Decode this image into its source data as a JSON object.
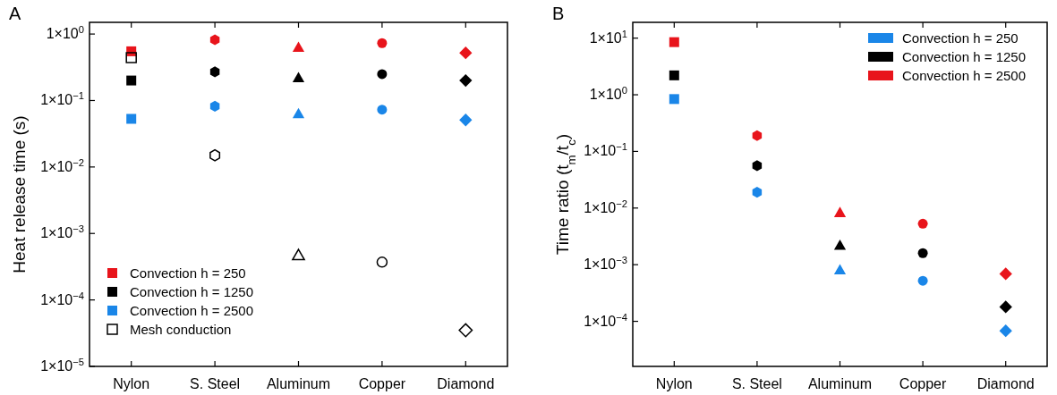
{
  "chart_data": [
    {
      "type": "scatter",
      "title": "A",
      "ylabel": "Heat release time (s)",
      "categories": [
        "Nylon",
        "S. Steel",
        "Aluminum",
        "Copper",
        "Diamond"
      ],
      "log": "y",
      "ylim": [
        1e-05,
        1.5
      ],
      "yticks": [
        {
          "value": 1e-05,
          "label": "1×10$^{−5}$"
        },
        {
          "value": 0.0001,
          "label": "1×10$^{−4}$"
        },
        {
          "value": 0.001,
          "label": "1×10$^{−3}$"
        },
        {
          "value": 0.01,
          "label": "1×10$^{−2}$"
        },
        {
          "value": 0.1,
          "label": "1×10$^{−1}$"
        },
        {
          "value": 1,
          "label": "1×10$^{0}$"
        }
      ],
      "legend": "bottom left",
      "grid": false,
      "series": [
        {
          "name": "Convection h = 250",
          "color": "#e8141b",
          "values": [
            0.55,
            0.82,
            0.63,
            0.73,
            0.52
          ]
        },
        {
          "name": "Convection h = 1250",
          "color": "#000000",
          "values": [
            0.2,
            0.27,
            0.22,
            0.25,
            0.2
          ]
        },
        {
          "name": "Convection h = 2500",
          "color": "#1a86e8",
          "values": [
            0.053,
            0.082,
            0.063,
            0.073,
            0.051
          ]
        },
        {
          "name": "Mesh conduction",
          "color": "#000000",
          "values": [
            0.44,
            0.015,
            0.00047,
            0.00037,
            3.5e-05
          ]
        }
      ]
    },
    {
      "type": "scatter",
      "title": "B",
      "ylabel": "Time ratio (t$_{m}$/t$_{c}$)",
      "categories": [
        "Nylon",
        "S. Steel",
        "Aluminum",
        "Copper",
        "Diamond"
      ],
      "log": "y",
      "ylim": [
        1.6e-05,
        19
      ],
      "yticks": [
        {
          "value": 0.0001,
          "label": "1×10$^{−4}$"
        },
        {
          "value": 0.001,
          "label": "1×10$^{−3}$"
        },
        {
          "value": 0.01,
          "label": "1×10$^{−2}$"
        },
        {
          "value": 0.1,
          "label": "1×10$^{−1}$"
        },
        {
          "value": 1,
          "label": "1×10$^{0}$"
        },
        {
          "value": 10,
          "label": "1×10$^{1}$"
        }
      ],
      "legend": "top right",
      "grid": false,
      "series": [
        {
          "name": "Convection h = 250",
          "color": "#1a86e8",
          "values": [
            0.84,
            0.019,
            0.00081,
            0.00052,
            6.8e-05
          ]
        },
        {
          "name": "Convection h = 1250",
          "color": "#000000",
          "values": [
            2.2,
            0.056,
            0.0022,
            0.0016,
            0.00018
          ]
        },
        {
          "name": "Convection h = 2500",
          "color": "#e8141b",
          "values": [
            8.5,
            0.19,
            0.0083,
            0.0053,
            0.00069
          ]
        }
      ]
    }
  ]
}
